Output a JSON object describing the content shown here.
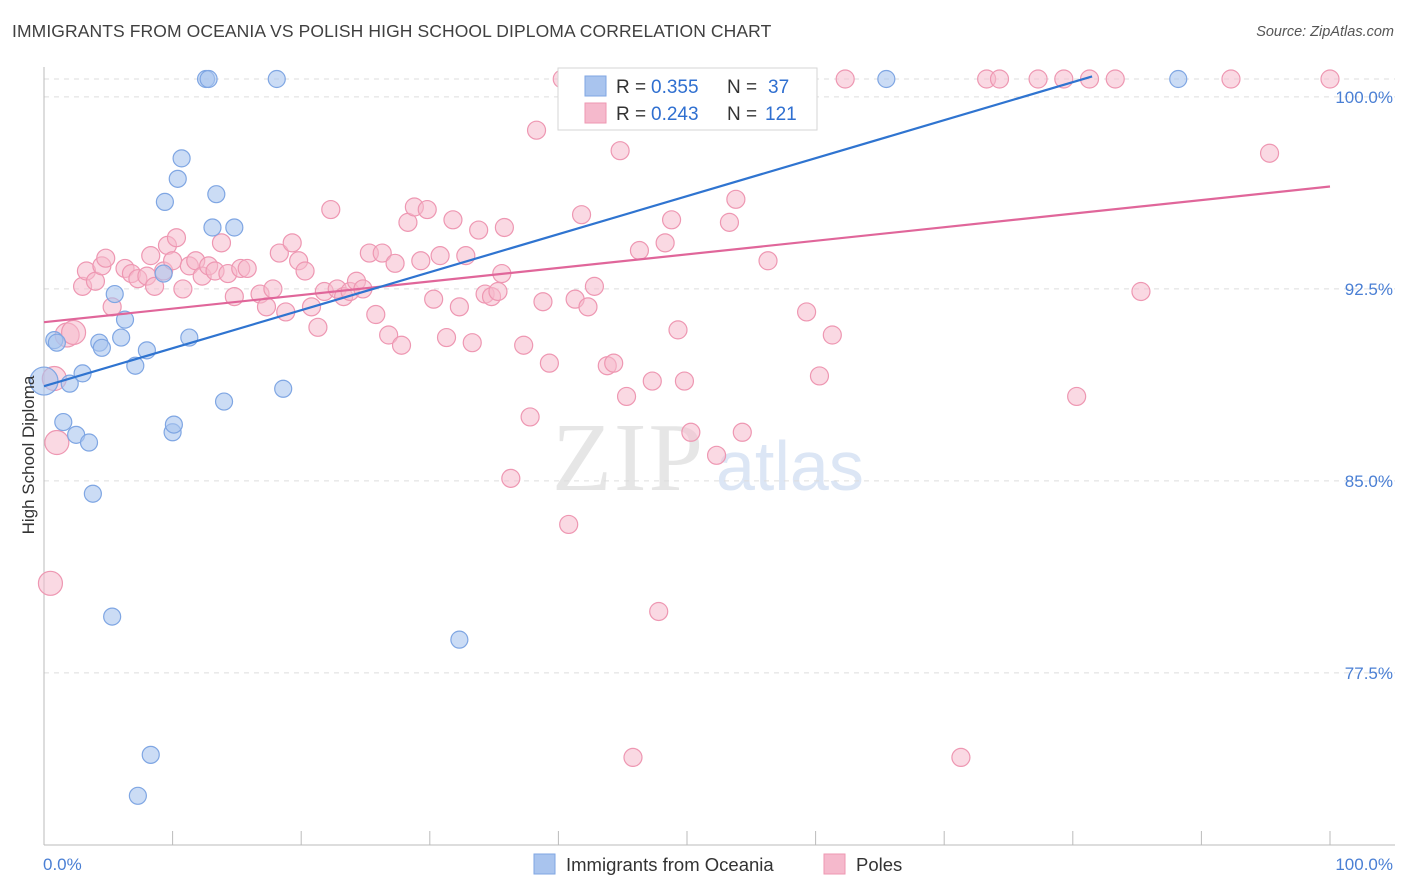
{
  "header": {
    "title": "IMMIGRANTS FROM OCEANIA VS POLISH HIGH SCHOOL DIPLOMA CORRELATION CHART",
    "source": "Source: ZipAtlas.com"
  },
  "watermark": {
    "zip": "ZIP",
    "atlas": "atlas"
  },
  "colors": {
    "blue_fill": "#a9c4ee",
    "blue_stroke": "#7fa6e3",
    "blue_line": "#2f74d0",
    "pink_fill": "#f5b9cc",
    "pink_stroke": "#ee97b2",
    "pink_line": "#e0669a",
    "value_text": "#2f6fd0",
    "grid": "#dddddd"
  },
  "legend": {
    "rows": [
      {
        "r_label": "R =",
        "r_value": "0.355",
        "n_label": "N =",
        "n_value": "37"
      },
      {
        "r_label": "R =",
        "r_value": "0.243",
        "n_label": "N =",
        "n_value": "121"
      }
    ]
  },
  "chart_data": {
    "type": "scatter",
    "title": "IMMIGRANTS FROM OCEANIA VS POLISH HIGH SCHOOL DIPLOMA CORRELATION CHART",
    "xlabel": "",
    "ylabel": "High School Diploma",
    "xlim": [
      0,
      100
    ],
    "ylim": [
      71.5,
      101.5
    ],
    "x_tick_labels": [
      "0.0%",
      "100.0%"
    ],
    "y_ticks": [
      77.5,
      85.0,
      92.5,
      100.0
    ],
    "y_tick_labels": [
      "77.5%",
      "85.0%",
      "92.5%",
      "100.0%"
    ],
    "grid": "horizontal dashed",
    "legend_position": "top-center",
    "series": [
      {
        "name": "Immigrants from Oceania",
        "R": 0.355,
        "N": 37,
        "trend": {
          "x": [
            0,
            81.5
          ],
          "y": [
            88.7,
            100.8
          ]
        },
        "points": [
          [
            0.0,
            88.9
          ],
          [
            0.8,
            90.5
          ],
          [
            1.0,
            90.4
          ],
          [
            2.0,
            88.8
          ],
          [
            3.0,
            89.2
          ],
          [
            1.5,
            87.3
          ],
          [
            2.5,
            86.8
          ],
          [
            3.5,
            86.5
          ],
          [
            3.8,
            84.5
          ],
          [
            4.3,
            90.4
          ],
          [
            4.5,
            90.2
          ],
          [
            5.5,
            92.3
          ],
          [
            6.0,
            90.6
          ],
          [
            6.3,
            91.3
          ],
          [
            7.1,
            89.5
          ],
          [
            5.3,
            79.7
          ],
          [
            8.0,
            90.1
          ],
          [
            8.3,
            74.3
          ],
          [
            7.3,
            72.7
          ],
          [
            9.3,
            93.1
          ],
          [
            9.4,
            95.9
          ],
          [
            10.4,
            96.8
          ],
          [
            10.7,
            97.6
          ],
          [
            11.3,
            90.6
          ],
          [
            10.0,
            86.9
          ],
          [
            10.1,
            87.2
          ],
          [
            12.6,
            100.7
          ],
          [
            12.8,
            100.7
          ],
          [
            13.1,
            94.9
          ],
          [
            13.4,
            96.2
          ],
          [
            14.0,
            88.1
          ],
          [
            14.8,
            94.9
          ],
          [
            18.1,
            100.7
          ],
          [
            18.6,
            88.6
          ],
          [
            32.3,
            78.8
          ],
          [
            65.5,
            100.7
          ],
          [
            88.2,
            100.7
          ]
        ]
      },
      {
        "name": "Poles",
        "R": 0.243,
        "N": 121,
        "trend": {
          "x": [
            0,
            100
          ],
          "y": [
            91.2,
            96.5
          ]
        },
        "points": [
          [
            0.8,
            89.0
          ],
          [
            1.0,
            86.5
          ],
          [
            0.5,
            81.0
          ],
          [
            1.8,
            90.7
          ],
          [
            2.3,
            90.8
          ],
          [
            3.0,
            92.6
          ],
          [
            3.3,
            93.2
          ],
          [
            4.0,
            92.8
          ],
          [
            4.5,
            93.4
          ],
          [
            4.8,
            93.7
          ],
          [
            5.3,
            91.8
          ],
          [
            6.3,
            93.3
          ],
          [
            6.8,
            93.1
          ],
          [
            7.3,
            92.9
          ],
          [
            8.0,
            93.0
          ],
          [
            8.3,
            93.8
          ],
          [
            8.6,
            92.6
          ],
          [
            9.3,
            93.2
          ],
          [
            9.6,
            94.2
          ],
          [
            10.0,
            93.6
          ],
          [
            10.3,
            94.5
          ],
          [
            10.8,
            92.5
          ],
          [
            11.3,
            93.4
          ],
          [
            11.8,
            93.6
          ],
          [
            12.3,
            93.0
          ],
          [
            12.8,
            93.4
          ],
          [
            13.3,
            93.2
          ],
          [
            13.8,
            94.3
          ],
          [
            14.3,
            93.1
          ],
          [
            14.8,
            92.2
          ],
          [
            15.3,
            93.3
          ],
          [
            15.8,
            93.3
          ],
          [
            16.8,
            92.3
          ],
          [
            17.3,
            91.8
          ],
          [
            17.8,
            92.5
          ],
          [
            18.3,
            93.9
          ],
          [
            18.8,
            91.6
          ],
          [
            19.3,
            94.3
          ],
          [
            19.8,
            93.6
          ],
          [
            20.3,
            93.2
          ],
          [
            20.8,
            91.8
          ],
          [
            21.3,
            91.0
          ],
          [
            21.8,
            92.4
          ],
          [
            22.3,
            95.6
          ],
          [
            22.8,
            92.5
          ],
          [
            23.3,
            92.2
          ],
          [
            23.8,
            92.4
          ],
          [
            24.3,
            92.8
          ],
          [
            24.8,
            92.5
          ],
          [
            25.3,
            93.9
          ],
          [
            25.8,
            91.5
          ],
          [
            26.3,
            93.9
          ],
          [
            26.8,
            90.7
          ],
          [
            27.3,
            93.5
          ],
          [
            27.8,
            90.3
          ],
          [
            28.3,
            95.1
          ],
          [
            28.8,
            95.7
          ],
          [
            29.3,
            93.6
          ],
          [
            29.8,
            95.6
          ],
          [
            30.3,
            92.1
          ],
          [
            30.8,
            93.8
          ],
          [
            31.3,
            90.6
          ],
          [
            31.8,
            95.2
          ],
          [
            32.3,
            91.8
          ],
          [
            32.8,
            93.8
          ],
          [
            33.3,
            90.4
          ],
          [
            33.8,
            94.8
          ],
          [
            34.3,
            92.3
          ],
          [
            34.8,
            92.2
          ],
          [
            35.3,
            92.4
          ],
          [
            35.6,
            93.1
          ],
          [
            35.8,
            94.9
          ],
          [
            36.3,
            85.1
          ],
          [
            37.3,
            90.3
          ],
          [
            37.8,
            87.5
          ],
          [
            38.3,
            98.7
          ],
          [
            38.8,
            92.0
          ],
          [
            39.3,
            89.6
          ],
          [
            40.3,
            100.7
          ],
          [
            40.8,
            83.3
          ],
          [
            41.3,
            92.1
          ],
          [
            41.8,
            95.4
          ],
          [
            42.3,
            91.8
          ],
          [
            42.8,
            92.6
          ],
          [
            43.3,
            100.7
          ],
          [
            43.8,
            89.5
          ],
          [
            44.3,
            89.6
          ],
          [
            44.8,
            97.9
          ],
          [
            45.3,
            88.3
          ],
          [
            45.8,
            74.2
          ],
          [
            46.3,
            94.0
          ],
          [
            47.3,
            88.9
          ],
          [
            47.8,
            79.9
          ],
          [
            48.3,
            94.3
          ],
          [
            48.8,
            95.2
          ],
          [
            49.3,
            90.9
          ],
          [
            49.8,
            88.9
          ],
          [
            50.3,
            86.9
          ],
          [
            50.6,
            100.7
          ],
          [
            51.3,
            100.7
          ],
          [
            52.3,
            86.0
          ],
          [
            53.3,
            95.1
          ],
          [
            53.8,
            96.0
          ],
          [
            54.3,
            86.9
          ],
          [
            55.3,
            100.7
          ],
          [
            56.3,
            93.6
          ],
          [
            57.3,
            100.7
          ],
          [
            58.3,
            100.7
          ],
          [
            59.3,
            91.6
          ],
          [
            60.3,
            89.1
          ],
          [
            61.3,
            90.7
          ],
          [
            62.3,
            100.7
          ],
          [
            71.3,
            74.2
          ],
          [
            73.3,
            100.7
          ],
          [
            74.3,
            100.7
          ],
          [
            77.3,
            100.7
          ],
          [
            79.3,
            100.7
          ],
          [
            80.3,
            88.3
          ],
          [
            81.3,
            100.7
          ],
          [
            83.3,
            100.7
          ],
          [
            85.3,
            92.4
          ],
          [
            92.3,
            100.7
          ],
          [
            95.3,
            97.8
          ],
          [
            100.0,
            100.7
          ]
        ]
      }
    ]
  }
}
